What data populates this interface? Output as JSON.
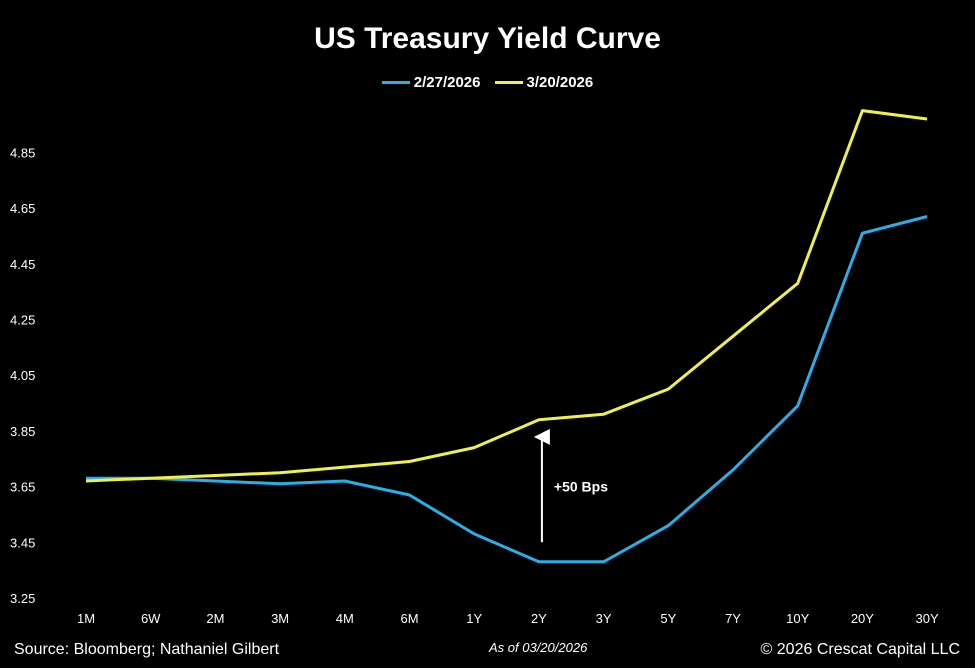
{
  "chart_data": {
    "type": "line",
    "title": "US Treasury Yield Curve",
    "categories": [
      "1M",
      "6W",
      "2M",
      "3M",
      "4M",
      "6M",
      "1Y",
      "2Y",
      "3Y",
      "5Y",
      "7Y",
      "10Y",
      "20Y",
      "30Y"
    ],
    "series": [
      {
        "name": "2/27/2026",
        "color": "#29aee8",
        "values": [
          3.68,
          3.68,
          3.67,
          3.66,
          3.67,
          3.62,
          3.48,
          3.38,
          3.38,
          3.51,
          3.71,
          3.94,
          4.56,
          4.62
        ]
      },
      {
        "name": "3/20/2026",
        "color": "#f0f04a",
        "values": [
          3.67,
          3.68,
          3.69,
          3.7,
          3.72,
          3.74,
          3.79,
          3.89,
          3.91,
          4.0,
          4.19,
          4.38,
          5.0,
          4.97
        ]
      }
    ],
    "yticks": [
      "3.25",
      "3.45",
      "3.65",
      "3.85",
      "4.05",
      "4.25",
      "4.45",
      "4.65",
      "4.85"
    ],
    "ylim": [
      3.25,
      5.05
    ],
    "annotation": {
      "text": "+50 Bps",
      "category": "2Y",
      "from": 3.45,
      "to": 3.85
    },
    "legend_position": "top-center",
    "grid": false
  },
  "footer": {
    "source": "Source: Bloomberg; Nathaniel Gilbert",
    "as_of": "As of 03/20/2026",
    "copyright": "© 2026 Crescat Capital LLC"
  }
}
